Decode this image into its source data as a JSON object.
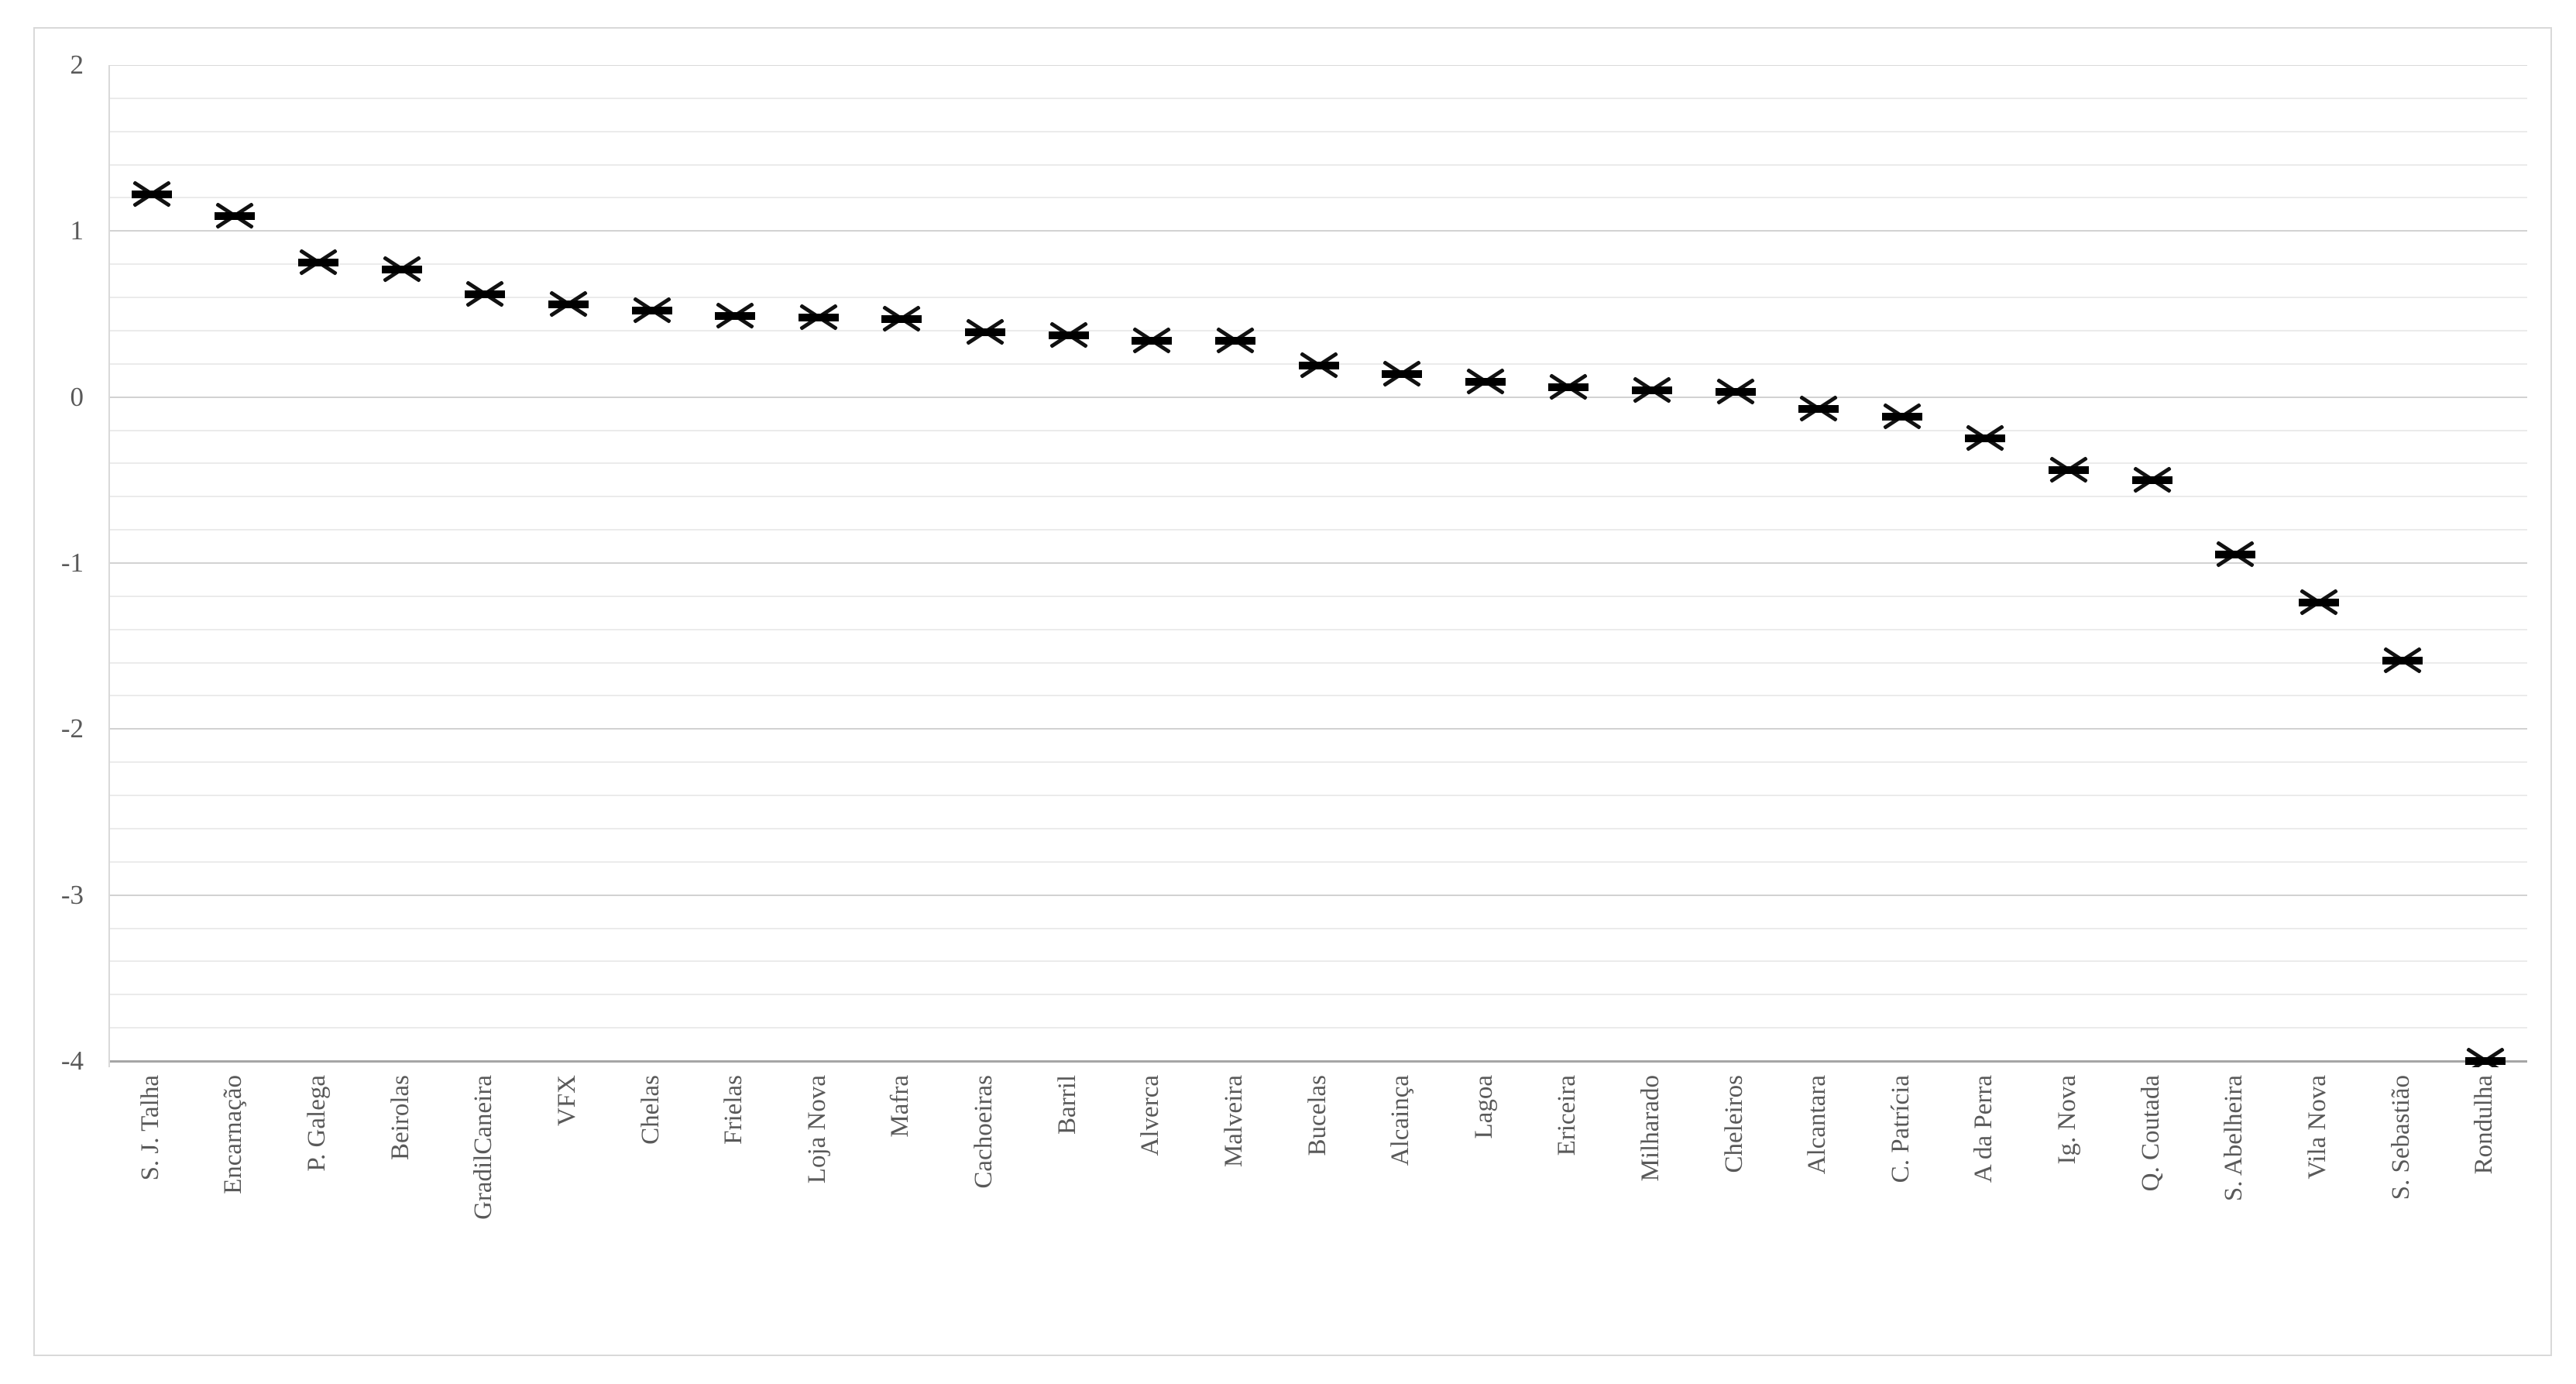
{
  "chart_data": {
    "type": "scatter",
    "title": "",
    "xlabel": "",
    "ylabel": "",
    "categories": [
      "S. J. Talha",
      "Encarnação",
      "P. Galega",
      "Beirolas",
      "GradilCaneira",
      "VFX",
      "Chelas",
      "Frielas",
      "Loja Nova",
      "Mafra",
      "Cachoeiras",
      "Barril",
      "Alverca",
      "Malveira",
      "Bucelas",
      "Alcainça",
      "Lagoa",
      "Ericeira",
      "Milharado",
      "Cheleiros",
      "Alcantara",
      "C. Patrícia",
      "A da Perra",
      "Ig. Nova",
      "Q. Coutada",
      "S. Abelheira",
      "Vila Nova",
      "S. Sebastião",
      "Rondulha"
    ],
    "values": [
      1.22,
      1.09,
      0.81,
      0.77,
      0.62,
      0.56,
      0.52,
      0.49,
      0.48,
      0.47,
      0.39,
      0.37,
      0.34,
      0.34,
      0.19,
      0.14,
      0.09,
      0.06,
      0.04,
      0.03,
      -0.07,
      -0.12,
      -0.25,
      -0.44,
      -0.5,
      -0.95,
      -1.24,
      -1.59,
      -4.0
    ],
    "series": [
      {
        "name": "",
        "marker": "x-cross-with-horizontal-dash",
        "color": "#000000"
      }
    ],
    "ylim": [
      -4,
      2
    ],
    "yticks": [
      2,
      1,
      0,
      -1,
      -2,
      -3,
      -4
    ],
    "ytick_labels": [
      "2",
      "1",
      "0",
      "-1",
      "-2",
      "-3",
      "-4"
    ],
    "minor_gridline_step": 0.2,
    "major_gridline_step": 1,
    "grid": true,
    "legend": "none",
    "x_labels_rotation_degrees": -90,
    "colors": {
      "marker": "#000000",
      "axis_text": "#595959",
      "gridline_minor": "#ebebeb",
      "gridline_major": "#d2d2d2",
      "x_axis_line": "#a6a6a6",
      "chart_border": "#d9d9d9",
      "background": "#ffffff"
    }
  }
}
